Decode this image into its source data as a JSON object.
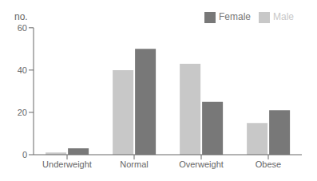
{
  "chart_data": {
    "type": "bar",
    "categories": [
      "Underweight",
      "Normal",
      "Overweight",
      "Obese"
    ],
    "series": [
      {
        "name": "Male",
        "color": "#c8c8c8",
        "values": [
          1,
          40,
          43,
          15
        ]
      },
      {
        "name": "Female",
        "color": "#787878",
        "values": [
          3,
          50,
          25,
          21
        ]
      }
    ],
    "ylabel": "no.",
    "ylim": [
      0,
      60
    ],
    "yticks": [
      0,
      20,
      40,
      60
    ],
    "legend": "upper right",
    "grid": false
  }
}
